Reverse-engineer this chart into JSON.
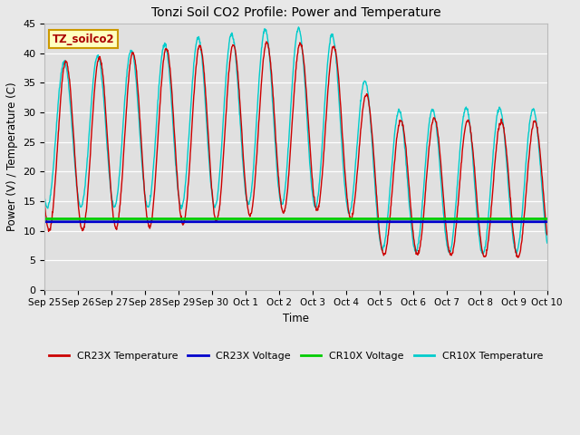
{
  "title": "Tonzi Soil CO2 Profile: Power and Temperature",
  "ylabel": "Power (V) / Temperature (C)",
  "xlabel": "Time",
  "ylim": [
    0,
    45
  ],
  "yticks": [
    0,
    5,
    10,
    15,
    20,
    25,
    30,
    35,
    40,
    45
  ],
  "fig_bg_color": "#e8e8e8",
  "plot_bg_color": "#e0e0e0",
  "annotation_text": "TZ_soilco2",
  "annotation_color": "#aa0000",
  "annotation_bg": "#ffffc0",
  "annotation_edge": "#cc9900",
  "x_tick_labels": [
    "Sep 25",
    "Sep 26",
    "Sep 27",
    "Sep 28",
    "Sep 29",
    "Sep 30",
    "Oct 1",
    "Oct 2",
    "Oct 3",
    "Oct 4",
    "Oct 5",
    "Oct 6",
    "Oct 7",
    "Oct 8",
    "Oct 9",
    "Oct 10"
  ],
  "cr23x_voltage_val": 11.5,
  "cr10x_voltage_val": 12.0,
  "colors": {
    "cr23x_temp": "#cc0000",
    "cr23x_voltage": "#0000cc",
    "cr10x_voltage": "#00cc00",
    "cr10x_temp": "#00cccc"
  },
  "legend_labels": [
    "CR23X Temperature",
    "CR23X Voltage",
    "CR10X Voltage",
    "CR10X Temperature"
  ],
  "n_days": 15,
  "cr23x_base": [
    24.0,
    24.5,
    25.0,
    25.5,
    26.0,
    26.5,
    27.0,
    27.5,
    27.5,
    27.0,
    17.0,
    17.5,
    17.5,
    17.0,
    17.0,
    17.0
  ],
  "cr23x_amp": [
    14.0,
    14.5,
    14.5,
    15.0,
    15.0,
    15.0,
    14.5,
    14.5,
    14.0,
    14.0,
    11.0,
    11.5,
    11.5,
    11.5,
    11.5,
    11.5
  ],
  "cr10x_base": [
    26.0,
    26.5,
    27.0,
    27.5,
    28.0,
    28.5,
    29.0,
    29.5,
    29.0,
    28.0,
    18.5,
    18.5,
    18.5,
    18.5,
    18.5,
    18.5
  ],
  "cr10x_amp": [
    12.0,
    12.5,
    13.0,
    13.5,
    14.0,
    14.5,
    14.5,
    15.0,
    15.0,
    14.5,
    11.5,
    12.0,
    12.0,
    12.5,
    12.0,
    12.0
  ],
  "cr23x_phase": 0.38,
  "cr10x_phase": 0.33
}
